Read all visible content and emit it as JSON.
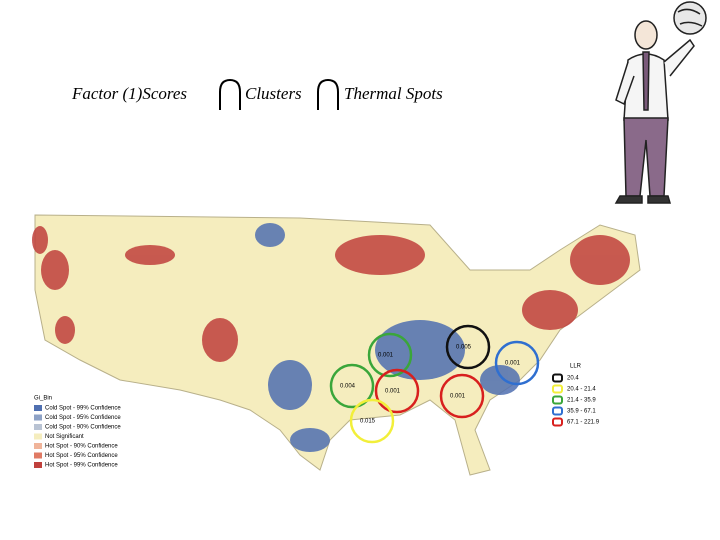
{
  "title": {
    "parts": [
      "Factor (1)Scores",
      "Clusters",
      "Thermal Spots"
    ]
  },
  "map_legend": {
    "title": "Gi_Bin",
    "items": [
      {
        "label": "Cold Spot - 99% Confidence",
        "color": "#4f6fb0"
      },
      {
        "label": "Cold Spot - 95% Confidence",
        "color": "#8ea2c6"
      },
      {
        "label": "Cold Spot - 90% Confidence",
        "color": "#b9c3d3"
      },
      {
        "label": "Not Significant",
        "color": "#f5edbe"
      },
      {
        "label": "Hot Spot - 90% Confidence",
        "color": "#f0b49a"
      },
      {
        "label": "Hot Spot - 95% Confidence",
        "color": "#e07a64"
      },
      {
        "label": "Hot Spot - 99% Confidence",
        "color": "#c0403c"
      }
    ]
  },
  "llr_legend": {
    "title": "LLR",
    "items": [
      {
        "label": "20.4",
        "color": "#111111"
      },
      {
        "label": "20.4 - 21.4",
        "color": "#f2ef3a"
      },
      {
        "label": "21.4 - 35.9",
        "color": "#3aa63a"
      },
      {
        "label": "35.9 - 67.1",
        "color": "#2f6fd0"
      },
      {
        "label": "67.1 - 221.9",
        "color": "#d8201e"
      }
    ]
  },
  "clusters": [
    {
      "label": "0.005",
      "color": "#111111"
    },
    {
      "label": "0.001",
      "color": "#2f6fd0"
    },
    {
      "label": "0.001",
      "color": "#3aa63a"
    },
    {
      "label": "0.004",
      "color": "#3aa63a"
    },
    {
      "label": "0.001",
      "color": "#d8201e"
    },
    {
      "label": "0.001",
      "color": "#d8201e"
    },
    {
      "label": "0.015",
      "color": "#f2ef3a"
    }
  ]
}
